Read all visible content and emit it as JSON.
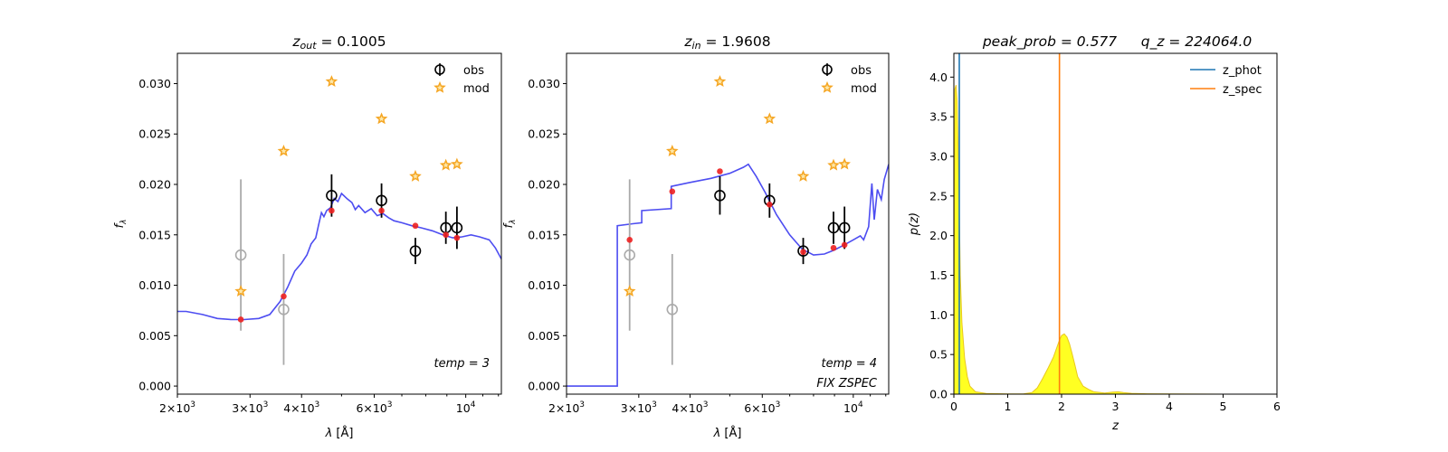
{
  "chart_data": [
    {
      "type": "scatter",
      "title": "z_out = 0.1005",
      "title_parts": {
        "sym": "z",
        "sub": "out",
        "val": " = 0.1005"
      },
      "xlabel": "λ [Å]",
      "ylabel": "f_λ",
      "xscale": "log",
      "xlim": [
        2000,
        12200
      ],
      "ylim": [
        -0.0008,
        0.033
      ],
      "xticks": [
        {
          "v": 2000,
          "m": "2",
          "e": "3"
        },
        {
          "v": 3000,
          "m": "3",
          "e": "3"
        },
        {
          "v": 4000,
          "m": "4",
          "e": "3"
        },
        {
          "v": 6000,
          "m": "6",
          "e": "3"
        },
        {
          "v": 10000,
          "m": "",
          "e": "4"
        }
      ],
      "yticks": [
        "0.000",
        "0.005",
        "0.010",
        "0.015",
        "0.020",
        "0.025",
        "0.030"
      ],
      "legend": {
        "placement": "upper right",
        "entries": [
          "obs",
          "mod"
        ]
      },
      "annotations": [
        "temp = 3"
      ],
      "series": [
        {
          "name": "obs",
          "points": [
            {
              "x": 4730,
              "y": 0.0189,
              "err": 0.0021
            },
            {
              "x": 6250,
              "y": 0.0184,
              "err": 0.0017
            },
            {
              "x": 7550,
              "y": 0.0134,
              "err": 0.0013
            },
            {
              "x": 8950,
              "y": 0.0157,
              "err": 0.0016
            },
            {
              "x": 9520,
              "y": 0.0157,
              "err": 0.0021
            }
          ]
        },
        {
          "name": "obs (low S/N)",
          "points": [
            {
              "x": 2850,
              "y": 0.013,
              "err": 0.0075
            },
            {
              "x": 3620,
              "y": 0.0076,
              "err": 0.0055
            }
          ]
        },
        {
          "name": "mod",
          "points": [
            {
              "x": 2850,
              "y": 0.0094
            },
            {
              "x": 3620,
              "y": 0.0233
            },
            {
              "x": 4730,
              "y": 0.0302
            },
            {
              "x": 6250,
              "y": 0.0265
            },
            {
              "x": 7550,
              "y": 0.0208
            },
            {
              "x": 8950,
              "y": 0.0219
            },
            {
              "x": 9520,
              "y": 0.022
            }
          ]
        },
        {
          "name": "template flux",
          "points": [
            {
              "x": 2850,
              "y": 0.0066
            },
            {
              "x": 3620,
              "y": 0.0089
            },
            {
              "x": 4730,
              "y": 0.0174
            },
            {
              "x": 6250,
              "y": 0.0174
            },
            {
              "x": 7550,
              "y": 0.0159
            },
            {
              "x": 8950,
              "y": 0.015
            },
            {
              "x": 9520,
              "y": 0.0147
            }
          ]
        },
        {
          "name": "template",
          "line": [
            [
              2000,
              0.0074
            ],
            [
              2100,
              0.0074
            ],
            [
              2300,
              0.0071
            ],
            [
              2500,
              0.0067
            ],
            [
              2700,
              0.0066
            ],
            [
              2900,
              0.0066
            ],
            [
              3150,
              0.0067
            ],
            [
              3350,
              0.0071
            ],
            [
              3550,
              0.0084
            ],
            [
              3700,
              0.0098
            ],
            [
              3850,
              0.0114
            ],
            [
              4000,
              0.0122
            ],
            [
              4120,
              0.013
            ],
            [
              4220,
              0.0141
            ],
            [
              4330,
              0.0147
            ],
            [
              4400,
              0.016
            ],
            [
              4470,
              0.0172
            ],
            [
              4530,
              0.0168
            ],
            [
              4600,
              0.0174
            ],
            [
              4700,
              0.0177
            ],
            [
              4800,
              0.0186
            ],
            [
              4900,
              0.0183
            ],
            [
              5000,
              0.0191
            ],
            [
              5150,
              0.0186
            ],
            [
              5300,
              0.0182
            ],
            [
              5400,
              0.0175
            ],
            [
              5500,
              0.0179
            ],
            [
              5700,
              0.0172
            ],
            [
              5900,
              0.0176
            ],
            [
              6100,
              0.0169
            ],
            [
              6300,
              0.0171
            ],
            [
              6500,
              0.0167
            ],
            [
              6700,
              0.0164
            ],
            [
              7000,
              0.0162
            ],
            [
              7400,
              0.0159
            ],
            [
              7800,
              0.0157
            ],
            [
              8300,
              0.0154
            ],
            [
              8800,
              0.015
            ],
            [
              9300,
              0.0147
            ],
            [
              9800,
              0.0148
            ],
            [
              10300,
              0.015
            ],
            [
              10800,
              0.0148
            ],
            [
              11400,
              0.0145
            ],
            [
              11800,
              0.0137
            ],
            [
              12200,
              0.0126
            ]
          ]
        }
      ]
    },
    {
      "type": "scatter",
      "title": "z_in = 1.9608",
      "title_parts": {
        "sym": "z",
        "sub": "in",
        "val": " = 1.9608"
      },
      "xlabel": "λ [Å]",
      "ylabel": "f_λ",
      "xscale": "log",
      "xlim": [
        2000,
        12200
      ],
      "ylim": [
        -0.0008,
        0.033
      ],
      "xticks": [
        {
          "v": 2000,
          "m": "2",
          "e": "3"
        },
        {
          "v": 3000,
          "m": "3",
          "e": "3"
        },
        {
          "v": 4000,
          "m": "4",
          "e": "3"
        },
        {
          "v": 6000,
          "m": "6",
          "e": "3"
        },
        {
          "v": 10000,
          "m": "",
          "e": "4"
        }
      ],
      "yticks": [
        "0.000",
        "0.005",
        "0.010",
        "0.015",
        "0.020",
        "0.025",
        "0.030"
      ],
      "legend": {
        "placement": "upper right",
        "entries": [
          "obs",
          "mod"
        ]
      },
      "annotations": [
        "temp = 4",
        "FIX ZSPEC"
      ],
      "series": [
        {
          "name": "obs",
          "points": [
            {
              "x": 4730,
              "y": 0.0189,
              "err": 0.0019
            },
            {
              "x": 6250,
              "y": 0.0184,
              "err": 0.0017
            },
            {
              "x": 7550,
              "y": 0.0134,
              "err": 0.0013
            },
            {
              "x": 8950,
              "y": 0.0157,
              "err": 0.0016
            },
            {
              "x": 9520,
              "y": 0.0157,
              "err": 0.0021
            }
          ]
        },
        {
          "name": "obs (low S/N)",
          "points": [
            {
              "x": 2850,
              "y": 0.013,
              "err": 0.0075
            },
            {
              "x": 3620,
              "y": 0.0076,
              "err": 0.0055
            }
          ]
        },
        {
          "name": "mod",
          "points": [
            {
              "x": 2850,
              "y": 0.0094
            },
            {
              "x": 3620,
              "y": 0.0233
            },
            {
              "x": 4730,
              "y": 0.0302
            },
            {
              "x": 6250,
              "y": 0.0265
            },
            {
              "x": 7550,
              "y": 0.0208
            },
            {
              "x": 8950,
              "y": 0.0219
            },
            {
              "x": 9520,
              "y": 0.022
            }
          ]
        },
        {
          "name": "template flux",
          "points": [
            {
              "x": 2850,
              "y": 0.0145
            },
            {
              "x": 3620,
              "y": 0.0193
            },
            {
              "x": 4730,
              "y": 0.0213
            },
            {
              "x": 6250,
              "y": 0.018
            },
            {
              "x": 7550,
              "y": 0.0133
            },
            {
              "x": 8950,
              "y": 0.0137
            },
            {
              "x": 9520,
              "y": 0.014
            }
          ]
        },
        {
          "name": "template",
          "line": [
            [
              2000,
              0.0
            ],
            [
              2660,
              0.0
            ],
            [
              2660,
              0.0159
            ],
            [
              2900,
              0.0161
            ],
            [
              3050,
              0.0162
            ],
            [
              3050,
              0.0174
            ],
            [
              3600,
              0.0176
            ],
            [
              3600,
              0.0198
            ],
            [
              4000,
              0.0202
            ],
            [
              4500,
              0.0206
            ],
            [
              5000,
              0.0211
            ],
            [
              5400,
              0.0217
            ],
            [
              5550,
              0.022
            ],
            [
              5800,
              0.0208
            ],
            [
              6100,
              0.0192
            ],
            [
              6500,
              0.017
            ],
            [
              7000,
              0.015
            ],
            [
              7500,
              0.0136
            ],
            [
              8000,
              0.013
            ],
            [
              8500,
              0.0131
            ],
            [
              9000,
              0.0135
            ],
            [
              9500,
              0.014
            ],
            [
              10000,
              0.0145
            ],
            [
              10400,
              0.0149
            ],
            [
              10600,
              0.0145
            ],
            [
              10900,
              0.0158
            ],
            [
              11100,
              0.0201
            ],
            [
              11250,
              0.0165
            ],
            [
              11450,
              0.0195
            ],
            [
              11700,
              0.0185
            ],
            [
              11900,
              0.0205
            ],
            [
              12200,
              0.022
            ]
          ]
        }
      ]
    },
    {
      "type": "area",
      "title_left": "peak_prob = 0.577",
      "title_right": "q_z = 224064.0",
      "xlabel": "z",
      "ylabel": "p(z)",
      "xlim": [
        0,
        6
      ],
      "ylim": [
        0,
        4.3
      ],
      "xticks": [
        "0",
        "1",
        "2",
        "3",
        "4",
        "5",
        "6"
      ],
      "yticks": [
        "0.0",
        "0.5",
        "1.0",
        "1.5",
        "2.0",
        "2.5",
        "3.0",
        "3.5",
        "4.0"
      ],
      "legend": {
        "placement": "upper right",
        "entries": [
          "z_phot",
          "z_spec"
        ]
      },
      "vlines": [
        {
          "name": "z_phot",
          "x": 0.1005,
          "color": "#1f77b4"
        },
        {
          "name": "z_spec",
          "x": 1.9608,
          "color": "#ff7f0e"
        }
      ],
      "pdf": [
        [
          0.0,
          0.5
        ],
        [
          0.02,
          3.85
        ],
        [
          0.04,
          3.9
        ],
        [
          0.06,
          3.7
        ],
        [
          0.08,
          3.0
        ],
        [
          0.1,
          2.3
        ],
        [
          0.12,
          1.5
        ],
        [
          0.15,
          0.9
        ],
        [
          0.2,
          0.45
        ],
        [
          0.25,
          0.22
        ],
        [
          0.3,
          0.1
        ],
        [
          0.4,
          0.03
        ],
        [
          0.6,
          0.008
        ],
        [
          1.0,
          0.003
        ],
        [
          1.3,
          0.005
        ],
        [
          1.45,
          0.02
        ],
        [
          1.55,
          0.08
        ],
        [
          1.65,
          0.2
        ],
        [
          1.75,
          0.33
        ],
        [
          1.85,
          0.47
        ],
        [
          1.95,
          0.66
        ],
        [
          2.0,
          0.74
        ],
        [
          2.05,
          0.76
        ],
        [
          2.1,
          0.72
        ],
        [
          2.15,
          0.63
        ],
        [
          2.2,
          0.5
        ],
        [
          2.25,
          0.36
        ],
        [
          2.3,
          0.22
        ],
        [
          2.4,
          0.1
        ],
        [
          2.5,
          0.06
        ],
        [
          2.6,
          0.03
        ],
        [
          2.8,
          0.015
        ],
        [
          2.95,
          0.025
        ],
        [
          3.05,
          0.03
        ],
        [
          3.15,
          0.02
        ],
        [
          3.3,
          0.01
        ],
        [
          3.6,
          0.004
        ],
        [
          4.0,
          0.002
        ],
        [
          5.0,
          0.0
        ]
      ]
    }
  ],
  "colors": {
    "template_line": "#3a3af0",
    "template_flux": "#ee2020",
    "model_star": "#f5a623",
    "obs": "#000000",
    "obs_low_snr": "#aaaaaa",
    "pdf_fill": "#ffff22",
    "pdf_edge": "#e8c820"
  }
}
